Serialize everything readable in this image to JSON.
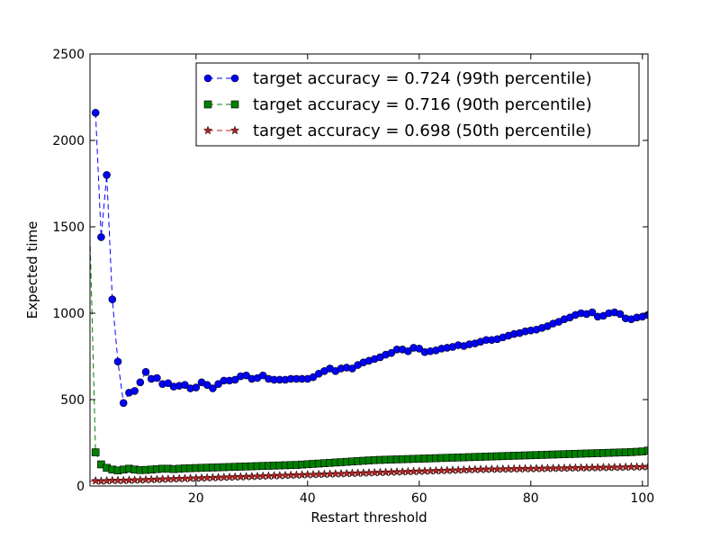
{
  "chart_data": {
    "type": "line",
    "xlabel": "Restart threshold",
    "ylabel": "Expected time",
    "xlim": [
      1,
      101
    ],
    "ylim": [
      0,
      2500
    ],
    "xticks": [
      20,
      40,
      60,
      80,
      100
    ],
    "yticks": [
      0,
      500,
      1000,
      1500,
      2000,
      2500
    ],
    "grid": false,
    "legend_position": "top-right",
    "x": [
      2,
      3,
      4,
      5,
      6,
      7,
      8,
      9,
      10,
      11,
      12,
      13,
      14,
      15,
      16,
      17,
      18,
      19,
      20,
      21,
      22,
      23,
      24,
      25,
      26,
      27,
      28,
      29,
      30,
      31,
      32,
      33,
      34,
      35,
      36,
      37,
      38,
      39,
      40,
      41,
      42,
      43,
      44,
      45,
      46,
      47,
      48,
      49,
      50,
      51,
      52,
      53,
      54,
      55,
      56,
      57,
      58,
      59,
      60,
      61,
      62,
      63,
      64,
      65,
      66,
      67,
      68,
      69,
      70,
      71,
      72,
      73,
      74,
      75,
      76,
      77,
      78,
      79,
      80,
      81,
      82,
      83,
      84,
      85,
      86,
      87,
      88,
      89,
      90,
      91,
      92,
      93,
      94,
      95,
      96,
      97,
      98,
      99,
      100,
      101
    ],
    "series": [
      {
        "name": "target accuracy = 0.724 (99th percentile)",
        "color": "#0000ff",
        "marker": "circle",
        "values": [
          2160,
          1440,
          1800,
          1080,
          720,
          480,
          540,
          550,
          600,
          660,
          620,
          625,
          590,
          595,
          575,
          580,
          585,
          565,
          570,
          600,
          585,
          565,
          590,
          610,
          610,
          615,
          635,
          640,
          620,
          625,
          640,
          620,
          615,
          615,
          615,
          620,
          620,
          620,
          620,
          630,
          650,
          665,
          680,
          665,
          680,
          685,
          680,
          700,
          715,
          725,
          735,
          745,
          760,
          770,
          790,
          790,
          780,
          800,
          795,
          775,
          780,
          785,
          795,
          800,
          805,
          815,
          810,
          820,
          825,
          835,
          845,
          845,
          850,
          860,
          870,
          880,
          885,
          895,
          900,
          905,
          915,
          925,
          940,
          950,
          965,
          975,
          990,
          1000,
          995,
          1005,
          980,
          985,
          1000,
          1005,
          995,
          970,
          965,
          975,
          980,
          990
        ]
      },
      {
        "name": "target accuracy = 0.716 (90th percentile)",
        "color": "#008000",
        "marker": "square",
        "values": [
          195,
          125,
          105,
          95,
          90,
          95,
          100,
          95,
          92,
          93,
          95,
          98,
          100,
          100,
          98,
          100,
          102,
          103,
          104,
          105,
          106,
          107,
          108,
          109,
          110,
          111,
          112,
          113,
          114,
          115,
          116,
          117,
          118,
          119,
          120,
          121,
          122,
          124,
          126,
          128,
          130,
          132,
          134,
          136,
          138,
          140,
          142,
          144,
          146,
          148,
          150,
          151,
          152,
          153,
          154,
          155,
          156,
          157,
          158,
          159,
          160,
          161,
          162,
          163,
          164,
          165,
          166,
          167,
          168,
          169,
          170,
          171,
          172,
          173,
          174,
          175,
          176,
          177,
          178,
          179,
          180,
          181,
          182,
          183,
          184,
          185,
          186,
          187,
          188,
          189,
          190,
          191,
          192,
          193,
          194,
          195,
          196,
          198,
          200,
          205
        ]
      },
      {
        "name": "target accuracy = 0.698 (50th percentile)",
        "color": "#b22222",
        "marker": "star",
        "values": [
          30,
          28,
          30,
          32,
          32,
          32,
          33,
          34,
          35,
          36,
          37,
          38,
          39,
          40,
          41,
          42,
          43,
          44,
          45,
          46,
          47,
          48,
          49,
          50,
          51,
          52,
          53,
          54,
          55,
          56,
          57,
          58,
          59,
          60,
          61,
          62,
          63,
          64,
          65,
          66,
          67,
          68,
          69,
          70,
          71,
          72,
          73,
          74,
          75,
          76,
          77,
          78,
          79,
          80,
          81,
          82,
          83,
          84,
          85,
          86,
          87,
          88,
          89,
          90,
          91,
          92,
          93,
          94,
          95,
          96,
          96,
          97,
          97,
          98,
          98,
          99,
          99,
          100,
          100,
          101,
          101,
          102,
          102,
          103,
          103,
          104,
          104,
          105,
          105,
          106,
          106,
          107,
          107,
          108,
          108,
          109,
          110,
          110,
          111,
          112
        ]
      }
    ],
    "leading_segments": [
      {
        "series": 1,
        "from": [
          1,
          1440
        ],
        "to": [
          2,
          195
        ]
      },
      {
        "series": 2,
        "from": [
          1,
          28
        ],
        "to": [
          2,
          30
        ]
      }
    ]
  }
}
